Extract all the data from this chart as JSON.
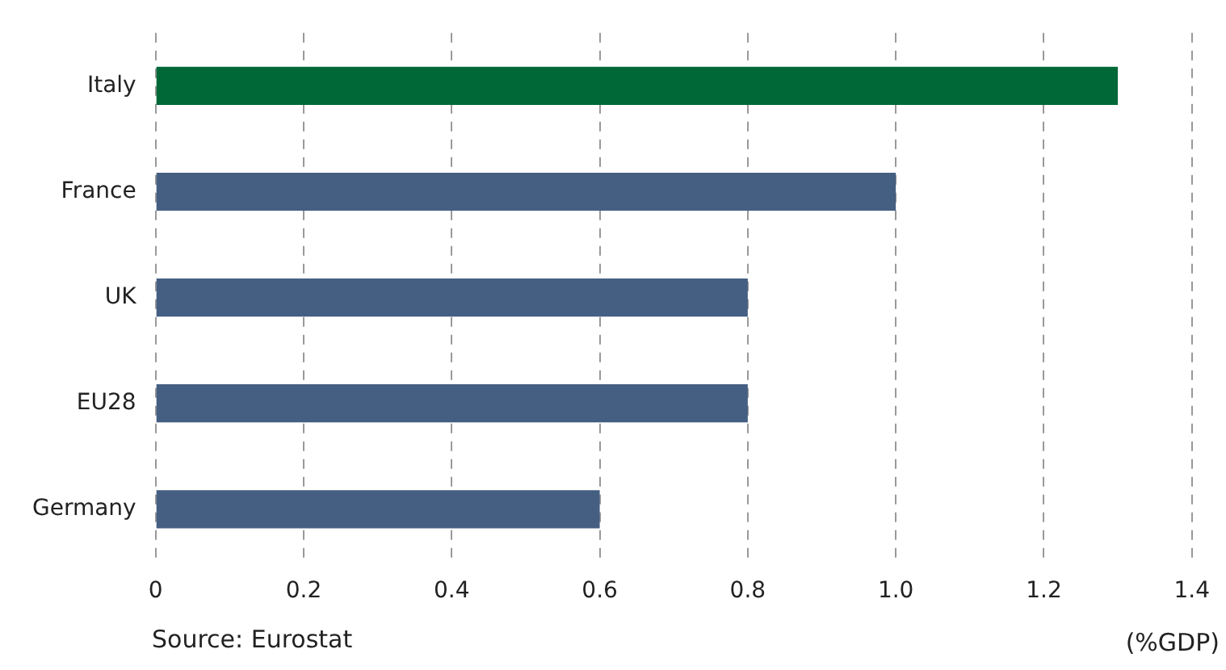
{
  "chart_data": {
    "type": "bar",
    "orientation": "horizontal",
    "categories": [
      "Italy",
      "France",
      "UK",
      "EU28",
      "Germany"
    ],
    "values": [
      1.3,
      1.0,
      0.8,
      0.8,
      0.6
    ],
    "colors": [
      "#006837",
      "#455f82",
      "#455f82",
      "#455f82",
      "#455f82"
    ],
    "xlim": [
      0,
      1.4
    ],
    "xticks": [
      0,
      0.2,
      0.4,
      0.6,
      0.8,
      {
        "value": 1,
        "label": "1.0"
      },
      1.2,
      1.4
    ],
    "xlabel": "(%GDP)",
    "annotations": [
      "Source: Eurostat"
    ],
    "grid": "x",
    "legend": false
  }
}
